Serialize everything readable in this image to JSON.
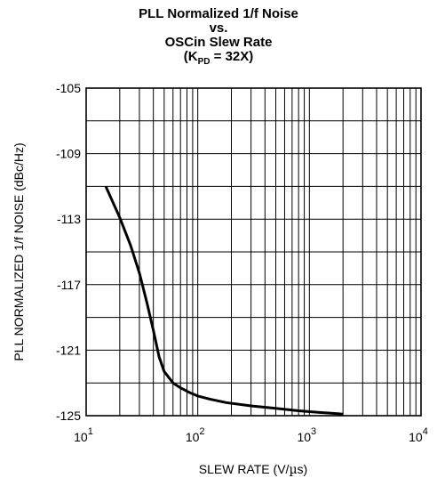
{
  "chart_data": {
    "type": "line",
    "title_lines": [
      "PLL Normalized 1/f Noise",
      "vs.",
      "OSCin Slew Rate"
    ],
    "title_kpd": {
      "prefix": "(K",
      "sub": "PD",
      "suffix": " = 32X)"
    },
    "xlabel_prefix": "SLEW RATE (V/",
    "xlabel_mu": "µ",
    "xlabel_suffix": "s)",
    "ylabel": "PLL NORMALIZED 1/f NOISE (dBc/Hz)",
    "x_scale": "log",
    "xlim": [
      10,
      10000
    ],
    "ylim": [
      -125,
      -105
    ],
    "grid": true,
    "x_ticks": [
      {
        "base": "10",
        "exp": "1",
        "value": 10
      },
      {
        "base": "10",
        "exp": "2",
        "value": 100
      },
      {
        "base": "10",
        "exp": "3",
        "value": 1000
      },
      {
        "base": "10",
        "exp": "4",
        "value": 10000
      }
    ],
    "y_ticks": [
      {
        "label": "-105",
        "value": -105
      },
      {
        "label": "-109",
        "value": -109
      },
      {
        "label": "-113",
        "value": -113
      },
      {
        "label": "-117",
        "value": -117
      },
      {
        "label": "-121",
        "value": -121
      },
      {
        "label": "-125",
        "value": -125
      }
    ],
    "series": [
      {
        "x": [
          15,
          20,
          25,
          30,
          35,
          40,
          45,
          50,
          60,
          70,
          85,
          100,
          130,
          180,
          300,
          500,
          800,
          1200,
          2000
        ],
        "y": [
          -111.0,
          -112.9,
          -114.6,
          -116.3,
          -118.1,
          -119.8,
          -121.4,
          -122.3,
          -123.0,
          -123.3,
          -123.6,
          -123.8,
          -124.0,
          -124.2,
          -124.4,
          -124.55,
          -124.7,
          -124.8,
          -124.9
        ]
      }
    ]
  },
  "colors": {
    "line": "#000000",
    "grid": "#000000",
    "background": "#ffffff"
  }
}
